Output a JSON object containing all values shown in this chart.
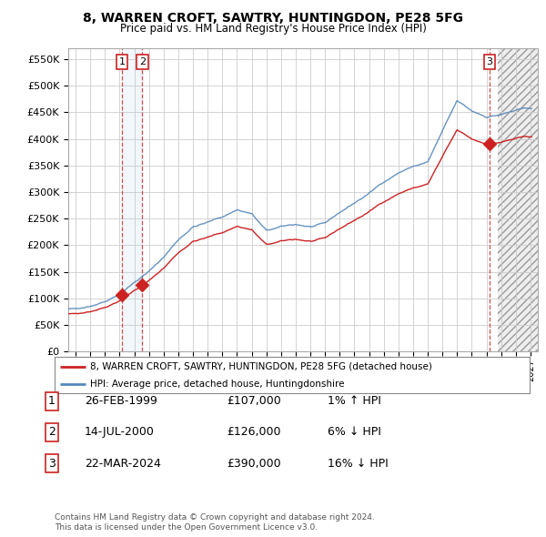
{
  "title1": "8, WARREN CROFT, SAWTRY, HUNTINGDON, PE28 5FG",
  "title2": "Price paid vs. HM Land Registry's House Price Index (HPI)",
  "ylabel_ticks": [
    "£0",
    "£50K",
    "£100K",
    "£150K",
    "£200K",
    "£250K",
    "£300K",
    "£350K",
    "£400K",
    "£450K",
    "£500K",
    "£550K"
  ],
  "ytick_values": [
    0,
    50000,
    100000,
    150000,
    200000,
    250000,
    300000,
    350000,
    400000,
    450000,
    500000,
    550000
  ],
  "xlim": [
    1995.5,
    2027.5
  ],
  "ylim": [
    0,
    570000
  ],
  "sale_years": [
    1999.15,
    2000.54,
    2024.22
  ],
  "sale_prices": [
    107000,
    126000,
    390000
  ],
  "sale_labels": [
    "1",
    "2",
    "3"
  ],
  "legend_line1": "8, WARREN CROFT, SAWTRY, HUNTINGDON, PE28 5FG (detached house)",
  "legend_line2": "HPI: Average price, detached house, Huntingdonshire",
  "table_rows": [
    {
      "num": "1",
      "date": "26-FEB-1999",
      "price": "£107,000",
      "change": "1% ↑ HPI"
    },
    {
      "num": "2",
      "date": "14-JUL-2000",
      "price": "£126,000",
      "change": "6% ↓ HPI"
    },
    {
      "num": "3",
      "date": "22-MAR-2024",
      "price": "£390,000",
      "change": "16% ↓ HPI"
    }
  ],
  "footnote1": "Contains HM Land Registry data © Crown copyright and database right 2024.",
  "footnote2": "This data is licensed under the Open Government Licence v3.0.",
  "hpi_color": "#5588bb",
  "sale_color": "#cc2222",
  "bg_color": "#ffffff",
  "grid_color": "#cccccc",
  "future_start": 2024.75,
  "hatch_region_color": "#e8e8e8"
}
